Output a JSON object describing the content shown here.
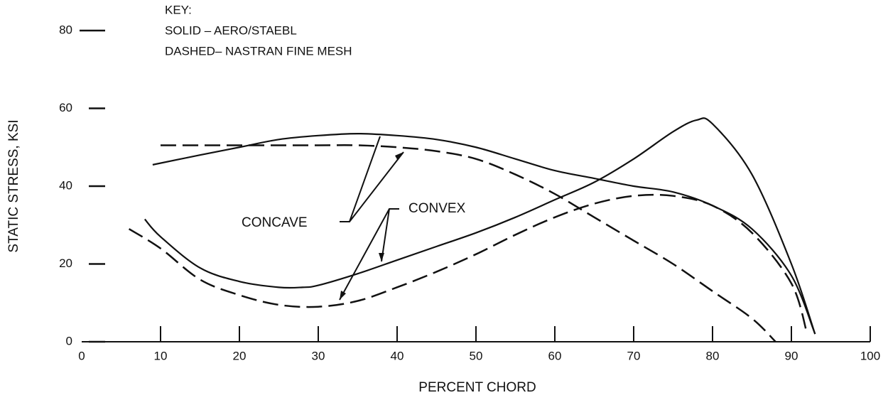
{
  "chart_data": {
    "type": "line",
    "annotations": [
      "KEY:",
      "SOLID – AERO/STAEBL",
      "DASHED– NASTRAN FINE MESH",
      "CONCAVE",
      "CONVEX"
    ],
    "x_label": "PERCENT CHORD",
    "y_label": "STATIC STRESS, KSI",
    "xlim": [
      0,
      100
    ],
    "xticks": [
      0,
      10,
      20,
      30,
      40,
      50,
      60,
      70,
      80,
      90,
      100
    ],
    "ylim": [
      0,
      80
    ],
    "yticks": [
      0,
      20,
      40,
      60,
      80
    ],
    "series": [
      {
        "color": "#111",
        "dashed": false,
        "x": [
          9,
          15,
          20,
          25,
          30,
          35,
          40,
          45,
          50,
          55,
          60,
          65,
          70,
          75,
          80,
          85,
          90,
          93
        ],
        "values": [
          45.5,
          48,
          50,
          52,
          53,
          53.5,
          53,
          52,
          50,
          47,
          44,
          42,
          40,
          38.5,
          35,
          29,
          17,
          2
        ]
      },
      {
        "color": "#111",
        "dashed": true,
        "x": [
          10,
          15,
          20,
          25,
          30,
          35,
          40,
          45,
          50,
          55,
          60,
          65,
          70,
          75,
          80,
          85,
          88
        ],
        "values": [
          50.5,
          50.5,
          50.5,
          50.5,
          50.5,
          50.5,
          50,
          49,
          47,
          43,
          38,
          32,
          26,
          20,
          13,
          6,
          0
        ]
      },
      {
        "color": "#111",
        "dashed": false,
        "x": [
          8,
          10,
          15,
          20,
          25,
          28,
          30,
          35,
          40,
          45,
          50,
          55,
          60,
          65,
          70,
          75,
          78,
          80,
          85,
          90,
          93
        ],
        "values": [
          31.5,
          27,
          19,
          15.5,
          14,
          14,
          14.5,
          17.5,
          21,
          24.5,
          28,
          32,
          36.5,
          41,
          47,
          54,
          57,
          56,
          43,
          20,
          2
        ]
      },
      {
        "color": "#111",
        "dashed": true,
        "x": [
          6,
          10,
          15,
          20,
          25,
          30,
          35,
          40,
          45,
          50,
          55,
          60,
          65,
          70,
          75,
          80,
          85,
          90,
          92
        ],
        "values": [
          29,
          24,
          16,
          12,
          9.5,
          9,
          10.5,
          14,
          18,
          22.5,
          27.5,
          32,
          35.5,
          37.5,
          37.5,
          35,
          28,
          15,
          2
        ]
      }
    ]
  }
}
